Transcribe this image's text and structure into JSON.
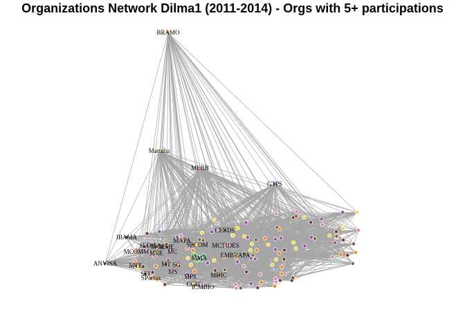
{
  "title": "Organizations Network Dilma1 (2011-2014) - Orgs with 5+ participations",
  "colors": {
    "edge": "#a6a6a6",
    "node_stroke": "#ffffff",
    "palette": [
      "#e8881c",
      "#f0dc3c",
      "#e07fb0",
      "#8e4f9e",
      "#8b5a2b",
      "#6e3b1e",
      "#3fa33f",
      "#d87a20"
    ]
  },
  "labeled_nodes": [
    {
      "id": "bramo",
      "label": "BRAMO"
    },
    {
      "id": "marinha",
      "label": "Marinha"
    },
    {
      "id": "mebb",
      "label": "MEBB"
    },
    {
      "id": "gtps",
      "label": "GTPS"
    },
    {
      "id": "cebds",
      "label": "CEBDS"
    },
    {
      "id": "ibama",
      "label": "IBAMA"
    },
    {
      "id": "mapa",
      "label": "MAPA"
    },
    {
      "id": "secom",
      "label": "SECOM"
    },
    {
      "id": "mctides",
      "label": "MCTIDES"
    },
    {
      "id": "sedh",
      "label": "SEDH"
    },
    {
      "id": "spm",
      "label": "SPM"
    },
    {
      "id": "mme",
      "label": "MME"
    },
    {
      "id": "mcomm",
      "label": "MCOMM"
    },
    {
      "id": "mre",
      "label": "MRE"
    },
    {
      "id": "mc",
      "label": "MC"
    },
    {
      "id": "anvisa",
      "label": "ANVISA"
    },
    {
      "id": "mte",
      "label": "MTE"
    },
    {
      "id": "mt",
      "label": "MT"
    },
    {
      "id": "sg",
      "label": "SG"
    },
    {
      "id": "embrapa",
      "label": "EMBRAPA"
    },
    {
      "id": "ms",
      "label": "MS"
    },
    {
      "id": "mps",
      "label": "MPS"
    },
    {
      "id": "mdic",
      "label": "MDIC"
    },
    {
      "id": "sei",
      "label": "SEI"
    },
    {
      "id": "sportos",
      "label": "SPortos"
    },
    {
      "id": "cgu",
      "label": "CGU"
    },
    {
      "id": "icmbio",
      "label": "ICMBIO"
    },
    {
      "id": "mma",
      "label": "MMA"
    }
  ]
}
